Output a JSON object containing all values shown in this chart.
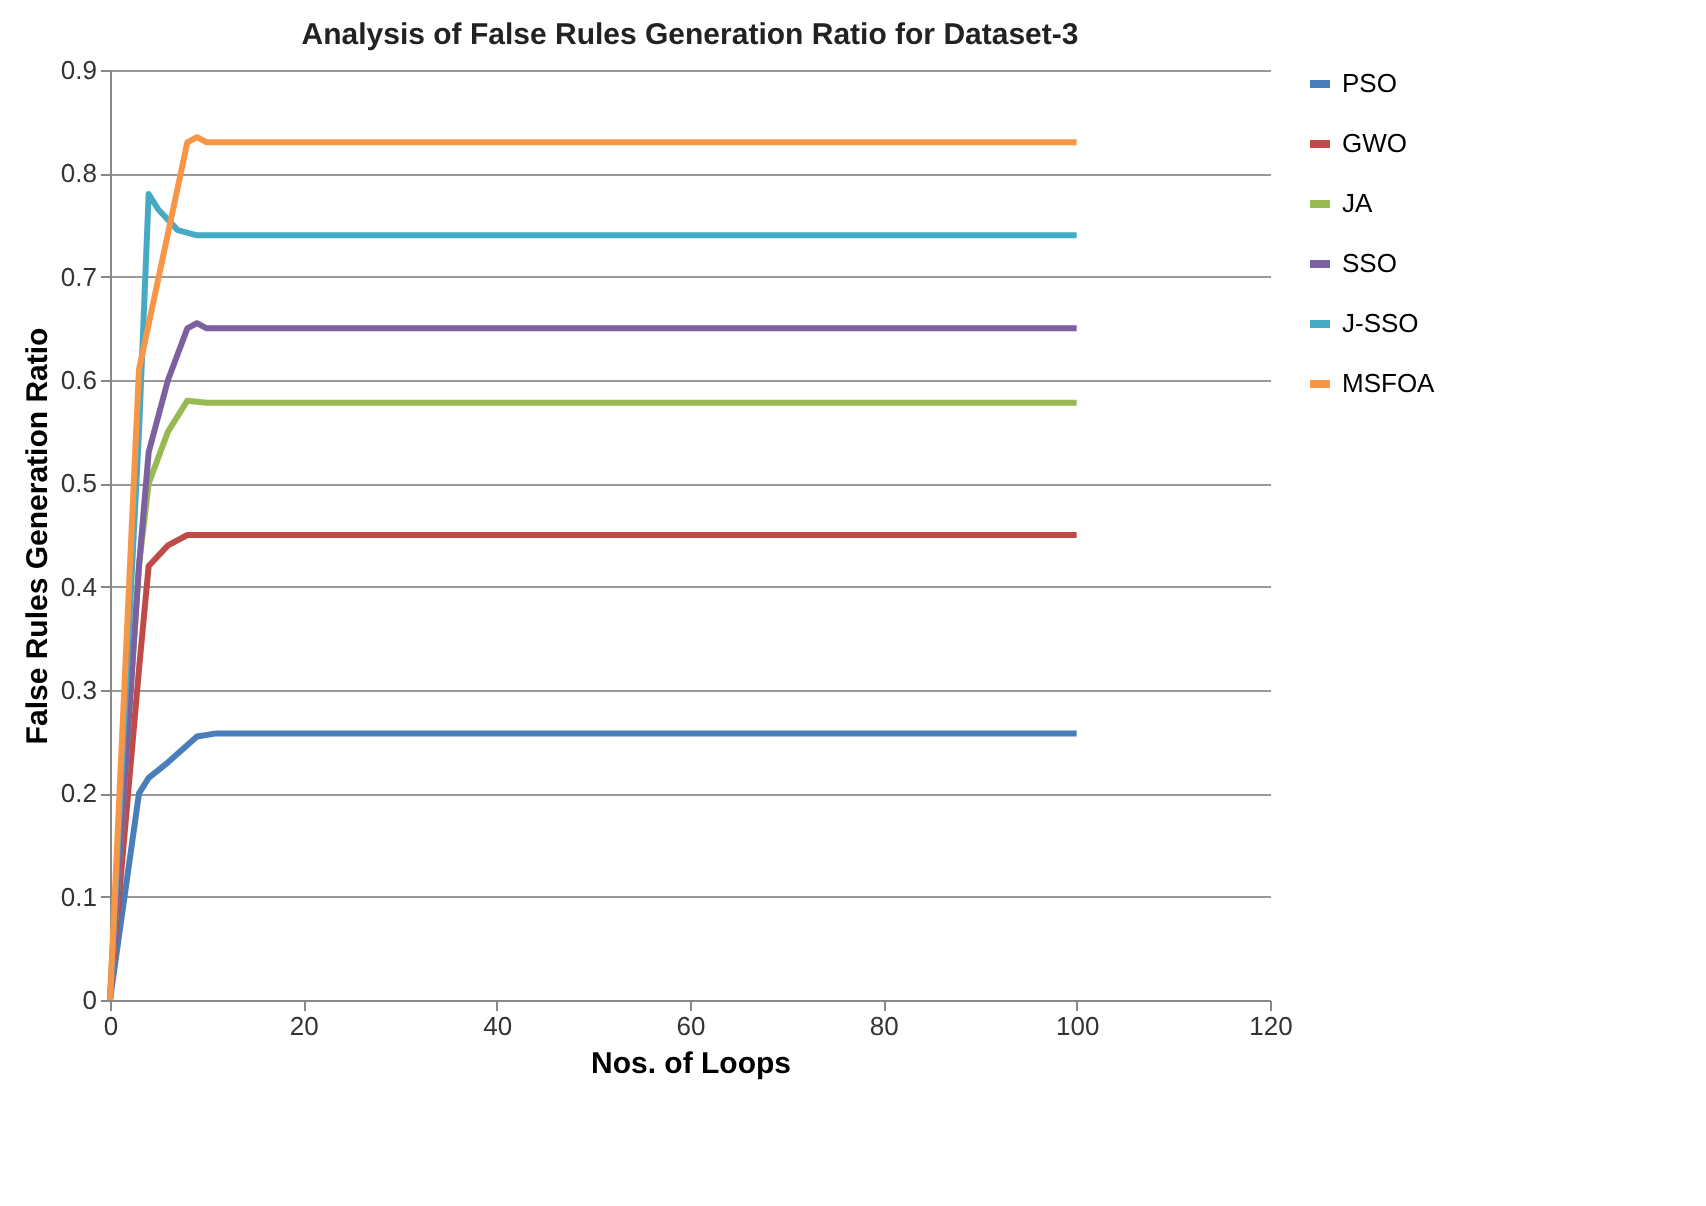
{
  "chart_data": {
    "type": "line",
    "title": "Analysis of False Rules Generation Ratio  for Dataset-3",
    "xlabel": "Nos. of Loops",
    "ylabel": "False Rules Generation Ratio",
    "xlim": [
      0,
      120
    ],
    "xticks": [
      0,
      20,
      40,
      60,
      80,
      100,
      120
    ],
    "ylim": [
      0,
      0.9
    ],
    "yticks": [
      0,
      0.1,
      0.2,
      0.3,
      0.4,
      0.5,
      0.6,
      0.7,
      0.8,
      0.9
    ],
    "grid": "y",
    "legend": "right",
    "marker": "none",
    "series": [
      {
        "name": "PSO",
        "color": "#4a7ebb",
        "x": [
          0,
          3,
          4,
          6,
          9,
          11,
          100
        ],
        "values": [
          0,
          0.2,
          0.215,
          0.23,
          0.255,
          0.258,
          0.258
        ]
      },
      {
        "name": "GWO",
        "color": "#be4b48",
        "x": [
          0,
          3,
          4,
          6,
          8,
          10,
          100
        ],
        "values": [
          0,
          0.32,
          0.42,
          0.44,
          0.45,
          0.45,
          0.45
        ]
      },
      {
        "name": "JA",
        "color": "#98b954",
        "x": [
          0,
          3,
          4,
          6,
          8,
          10,
          100
        ],
        "values": [
          0,
          0.42,
          0.5,
          0.55,
          0.58,
          0.578,
          0.578
        ]
      },
      {
        "name": "SSO",
        "color": "#7d60a0",
        "x": [
          0,
          3,
          4,
          6,
          8,
          9,
          10,
          100
        ],
        "values": [
          0,
          0.42,
          0.53,
          0.6,
          0.65,
          0.655,
          0.65,
          0.65
        ]
      },
      {
        "name": "J-SSO",
        "color": "#46aac5",
        "x": [
          0,
          3,
          4,
          5,
          7,
          9,
          100
        ],
        "values": [
          0,
          0.55,
          0.78,
          0.765,
          0.745,
          0.74,
          0.74
        ]
      },
      {
        "name": "MSFOA",
        "color": "#f79646",
        "x": [
          0,
          3,
          8,
          9,
          10,
          100
        ],
        "values": [
          0,
          0.61,
          0.83,
          0.835,
          0.83,
          0.83
        ]
      }
    ]
  }
}
